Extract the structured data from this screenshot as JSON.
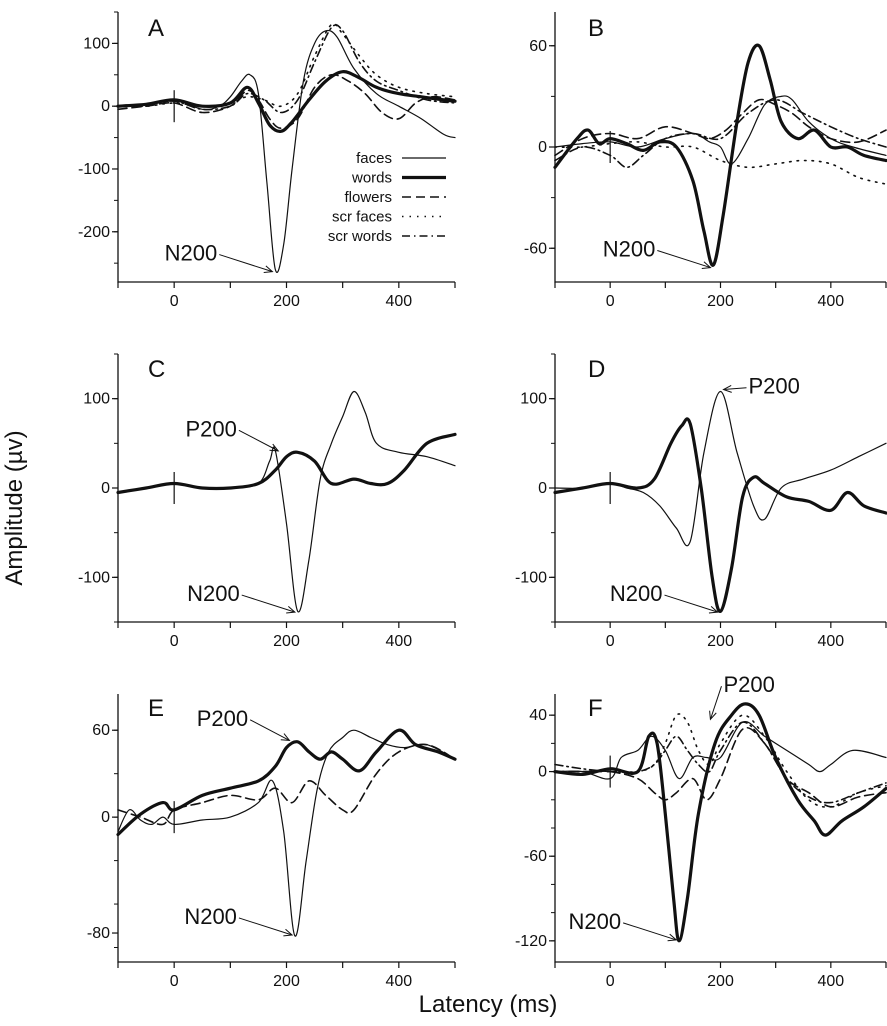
{
  "figure": {
    "ylabel": "Amplitude (µv)",
    "xlabel": "Latency (ms)"
  },
  "legend": {
    "entries": [
      {
        "label": "faces",
        "style": "thin"
      },
      {
        "label": "words",
        "style": "thick"
      },
      {
        "label": "flowers",
        "style": "dashed"
      },
      {
        "label": "scr faces",
        "style": "dotted"
      },
      {
        "label": "scr words",
        "style": "dashdot"
      }
    ]
  },
  "chart_data": [
    {
      "type": "line",
      "panel": "A",
      "xlim": [
        -100,
        500
      ],
      "ylim": [
        -280,
        150
      ],
      "xticks": [
        0,
        200,
        400
      ],
      "yticks": [
        100,
        0,
        -100,
        -200
      ],
      "annotations": [
        {
          "text": "N200",
          "x": 180,
          "y": -265
        }
      ],
      "series": [
        {
          "name": "faces",
          "style": "thin",
          "x": [
            -100,
            -50,
            0,
            50,
            80,
            100,
            120,
            135,
            150,
            165,
            180,
            195,
            210,
            230,
            250,
            270,
            290,
            320,
            360,
            400,
            440,
            480,
            500
          ],
          "y": [
            0,
            2,
            10,
            -5,
            0,
            15,
            40,
            50,
            20,
            -120,
            -260,
            -220,
            -100,
            40,
            100,
            120,
            110,
            60,
            20,
            0,
            -20,
            -45,
            -50
          ]
        },
        {
          "name": "words",
          "style": "thick",
          "x": [
            -100,
            -50,
            0,
            50,
            100,
            130,
            150,
            170,
            190,
            210,
            240,
            270,
            300,
            330,
            360,
            400,
            440,
            480,
            500
          ],
          "y": [
            0,
            3,
            10,
            0,
            5,
            30,
            5,
            -30,
            -40,
            -25,
            10,
            40,
            55,
            45,
            30,
            20,
            15,
            10,
            8
          ]
        },
        {
          "name": "flowers",
          "style": "dashed",
          "x": [
            -100,
            -50,
            0,
            50,
            100,
            130,
            150,
            170,
            190,
            220,
            250,
            280,
            310,
            340,
            370,
            400,
            430,
            460,
            500
          ],
          "y": [
            -5,
            0,
            5,
            -10,
            0,
            25,
            10,
            -20,
            -35,
            -20,
            30,
            50,
            40,
            20,
            -10,
            -20,
            5,
            15,
            10
          ]
        },
        {
          "name": "scr faces",
          "style": "dotted",
          "x": [
            -100,
            -50,
            0,
            50,
            100,
            130,
            160,
            190,
            220,
            250,
            280,
            300,
            330,
            360,
            400,
            450,
            500
          ],
          "y": [
            0,
            0,
            5,
            0,
            5,
            15,
            10,
            0,
            20,
            80,
            130,
            115,
            80,
            50,
            30,
            20,
            15
          ]
        },
        {
          "name": "scr words",
          "style": "dashdot",
          "x": [
            -100,
            -50,
            0,
            50,
            100,
            130,
            160,
            190,
            220,
            250,
            280,
            300,
            330,
            360,
            400,
            450,
            500
          ],
          "y": [
            0,
            2,
            8,
            -5,
            0,
            20,
            10,
            -10,
            10,
            70,
            125,
            120,
            70,
            40,
            25,
            10,
            5
          ]
        }
      ]
    },
    {
      "type": "line",
      "panel": "B",
      "xlim": [
        -100,
        500
      ],
      "ylim": [
        -80,
        80
      ],
      "xticks": [
        0,
        200,
        400
      ],
      "yticks": [
        60,
        0,
        -60
      ],
      "annotations": [
        {
          "text": "N200",
          "x": 187,
          "y": -72
        }
      ],
      "series": [
        {
          "name": "faces",
          "style": "thin",
          "x": [
            -100,
            -50,
            0,
            50,
            100,
            150,
            180,
            200,
            220,
            250,
            280,
            310,
            330,
            360,
            400,
            440,
            500
          ],
          "y": [
            0,
            2,
            3,
            0,
            5,
            8,
            3,
            0,
            -10,
            5,
            25,
            30,
            28,
            15,
            5,
            0,
            -5
          ]
        },
        {
          "name": "words",
          "style": "thick",
          "x": [
            -100,
            -60,
            -40,
            -20,
            0,
            30,
            60,
            90,
            120,
            150,
            170,
            187,
            205,
            230,
            250,
            270,
            290,
            310,
            340,
            370,
            400,
            430,
            460,
            500
          ],
          "y": [
            -12,
            5,
            10,
            2,
            5,
            2,
            -2,
            3,
            0,
            -20,
            -50,
            -70,
            -40,
            15,
            50,
            60,
            40,
            15,
            5,
            10,
            0,
            0,
            -5,
            -8
          ]
        },
        {
          "name": "flowers",
          "style": "dashed",
          "x": [
            -100,
            -50,
            0,
            50,
            100,
            150,
            180,
            210,
            240,
            270,
            300,
            330,
            360,
            400,
            450,
            500
          ],
          "y": [
            -5,
            5,
            8,
            5,
            12,
            8,
            5,
            10,
            20,
            28,
            25,
            20,
            12,
            5,
            3,
            10
          ]
        },
        {
          "name": "scr faces",
          "style": "dotted",
          "x": [
            -100,
            -50,
            0,
            50,
            100,
            150,
            200,
            250,
            300,
            350,
            400,
            450,
            500
          ],
          "y": [
            0,
            0,
            2,
            3,
            0,
            0,
            -8,
            -12,
            -10,
            -8,
            -10,
            -18,
            -22
          ]
        },
        {
          "name": "scr words",
          "style": "dashdot",
          "x": [
            -100,
            -50,
            0,
            30,
            60,
            100,
            150,
            200,
            250,
            300,
            350,
            400,
            450,
            500
          ],
          "y": [
            -8,
            0,
            -5,
            -12,
            -5,
            5,
            8,
            5,
            20,
            28,
            20,
            12,
            5,
            0
          ]
        }
      ]
    },
    {
      "type": "line",
      "panel": "C",
      "xlim": [
        -100,
        500
      ],
      "ylim": [
        -150,
        150
      ],
      "xticks": [
        0,
        200,
        400
      ],
      "yticks": [
        100,
        0,
        -100
      ],
      "annotations": [
        {
          "text": "P200",
          "x": 190,
          "y": 40
        },
        {
          "text": "N200",
          "x": 220,
          "y": -140
        }
      ],
      "series": [
        {
          "name": "faces",
          "style": "thin",
          "x": [
            -100,
            -50,
            0,
            50,
            100,
            150,
            170,
            180,
            200,
            220,
            240,
            260,
            280,
            300,
            320,
            340,
            360,
            400,
            450,
            500
          ],
          "y": [
            -5,
            0,
            5,
            0,
            0,
            5,
            30,
            42,
            -40,
            -138,
            -80,
            10,
            50,
            80,
            108,
            85,
            50,
            40,
            35,
            25
          ]
        },
        {
          "name": "words",
          "style": "thick",
          "x": [
            -100,
            -50,
            0,
            50,
            100,
            150,
            180,
            200,
            220,
            250,
            280,
            320,
            350,
            380,
            410,
            450,
            500
          ],
          "y": [
            -5,
            0,
            5,
            0,
            0,
            5,
            20,
            35,
            40,
            30,
            5,
            10,
            5,
            5,
            20,
            50,
            60
          ]
        }
      ]
    },
    {
      "type": "line",
      "panel": "D",
      "xlim": [
        -100,
        500
      ],
      "ylim": [
        -150,
        150
      ],
      "xticks": [
        0,
        200,
        400
      ],
      "yticks": [
        100,
        0,
        -100
      ],
      "annotations": [
        {
          "text": "P200",
          "x": 200,
          "y": 110
        },
        {
          "text": "N200",
          "x": 200,
          "y": -140
        }
      ],
      "series": [
        {
          "name": "faces",
          "style": "thin",
          "x": [
            -100,
            -50,
            0,
            30,
            60,
            90,
            120,
            145,
            170,
            200,
            230,
            260,
            280,
            310,
            350,
            400,
            450,
            500
          ],
          "y": [
            0,
            0,
            5,
            0,
            -5,
            -20,
            -45,
            -60,
            40,
            108,
            40,
            -20,
            -35,
            0,
            10,
            20,
            35,
            50
          ]
        },
        {
          "name": "words",
          "style": "thick",
          "x": [
            -100,
            -50,
            0,
            50,
            80,
            110,
            130,
            145,
            165,
            185,
            200,
            220,
            240,
            260,
            280,
            320,
            360,
            400,
            430,
            460,
            500
          ],
          "y": [
            -5,
            0,
            5,
            0,
            10,
            50,
            70,
            72,
            0,
            -100,
            -138,
            -90,
            -10,
            12,
            5,
            -10,
            -15,
            -25,
            -5,
            -20,
            -28
          ]
        }
      ]
    },
    {
      "type": "line",
      "panel": "E",
      "xlim": [
        -100,
        500
      ],
      "ylim": [
        -100,
        85
      ],
      "xticks": [
        0,
        200,
        400
      ],
      "yticks": [
        60,
        0,
        -80
      ],
      "annotations": [
        {
          "text": "P200",
          "x": 210,
          "y": 52
        },
        {
          "text": "N200",
          "x": 215,
          "y": -82
        }
      ],
      "series": [
        {
          "name": "faces",
          "style": "thin",
          "x": [
            -100,
            -80,
            -60,
            -40,
            -20,
            0,
            50,
            100,
            150,
            175,
            195,
            215,
            235,
            255,
            275,
            300,
            320,
            350,
            380,
            410,
            450,
            500
          ],
          "y": [
            -10,
            5,
            -2,
            -5,
            0,
            -5,
            -2,
            0,
            10,
            25,
            -10,
            -82,
            -30,
            20,
            45,
            55,
            60,
            55,
            50,
            48,
            50,
            40
          ]
        },
        {
          "name": "words",
          "style": "thick",
          "x": [
            -100,
            -60,
            -20,
            0,
            50,
            100,
            150,
            180,
            200,
            220,
            240,
            260,
            280,
            300,
            330,
            360,
            400,
            430,
            470,
            500
          ],
          "y": [
            -12,
            2,
            10,
            5,
            15,
            20,
            25,
            35,
            48,
            52,
            45,
            40,
            45,
            40,
            32,
            45,
            60,
            50,
            45,
            40
          ]
        },
        {
          "name": "flowers",
          "style": "dashed",
          "x": [
            -100,
            -60,
            -20,
            0,
            50,
            100,
            150,
            180,
            210,
            240,
            270,
            300,
            320,
            360,
            400,
            450,
            500
          ],
          "y": [
            5,
            0,
            -5,
            5,
            10,
            15,
            12,
            20,
            10,
            25,
            15,
            5,
            5,
            30,
            45,
            50,
            40
          ]
        }
      ]
    },
    {
      "type": "line",
      "panel": "F",
      "xlim": [
        -100,
        500
      ],
      "ylim": [
        -135,
        55
      ],
      "xticks": [
        0,
        200,
        400
      ],
      "yticks": [
        40,
        0,
        -60,
        -120
      ],
      "annotations": [
        {
          "text": "P200",
          "x": 180,
          "y": 35
        },
        {
          "text": "N200",
          "x": 125,
          "y": -120
        }
      ],
      "series": [
        {
          "name": "faces",
          "style": "thin",
          "x": [
            -100,
            -50,
            0,
            20,
            50,
            75,
            100,
            125,
            150,
            175,
            200,
            240,
            280,
            320,
            360,
            380,
            400,
            440,
            500
          ],
          "y": [
            0,
            0,
            -5,
            10,
            15,
            25,
            15,
            -5,
            10,
            10,
            10,
            35,
            25,
            15,
            5,
            0,
            5,
            15,
            10
          ]
        },
        {
          "name": "words",
          "style": "thick",
          "x": [
            -100,
            -50,
            0,
            50,
            70,
            85,
            100,
            115,
            125,
            140,
            160,
            190,
            220,
            245,
            270,
            300,
            340,
            370,
            390,
            420,
            460,
            500
          ],
          "y": [
            0,
            -2,
            2,
            0,
            25,
            20,
            -30,
            -90,
            -120,
            -90,
            -30,
            20,
            40,
            48,
            40,
            10,
            -20,
            -35,
            -45,
            -35,
            -25,
            -12
          ]
        },
        {
          "name": "flowers",
          "style": "dashed",
          "x": [
            -100,
            -50,
            0,
            50,
            80,
            100,
            120,
            150,
            175,
            200,
            240,
            280,
            320,
            360,
            400,
            450,
            500
          ],
          "y": [
            0,
            0,
            0,
            -5,
            -15,
            -20,
            -15,
            -5,
            -20,
            -5,
            30,
            20,
            -5,
            -15,
            -25,
            -18,
            -15
          ]
        },
        {
          "name": "scr faces",
          "style": "dotted",
          "x": [
            -100,
            -50,
            0,
            50,
            80,
            100,
            120,
            140,
            160,
            180,
            200,
            240,
            280,
            320,
            360,
            400,
            450,
            500
          ],
          "y": [
            0,
            0,
            0,
            0,
            5,
            20,
            40,
            35,
            15,
            5,
            20,
            40,
            25,
            0,
            -20,
            -25,
            -15,
            -10
          ]
        },
        {
          "name": "scr words",
          "style": "dashdot",
          "x": [
            -100,
            -50,
            0,
            50,
            80,
            100,
            120,
            140,
            160,
            180,
            200,
            240,
            280,
            320,
            360,
            400,
            450,
            500
          ],
          "y": [
            5,
            2,
            0,
            0,
            5,
            15,
            25,
            15,
            5,
            0,
            15,
            35,
            20,
            -5,
            -18,
            -22,
            -15,
            -8
          ]
        }
      ]
    }
  ]
}
